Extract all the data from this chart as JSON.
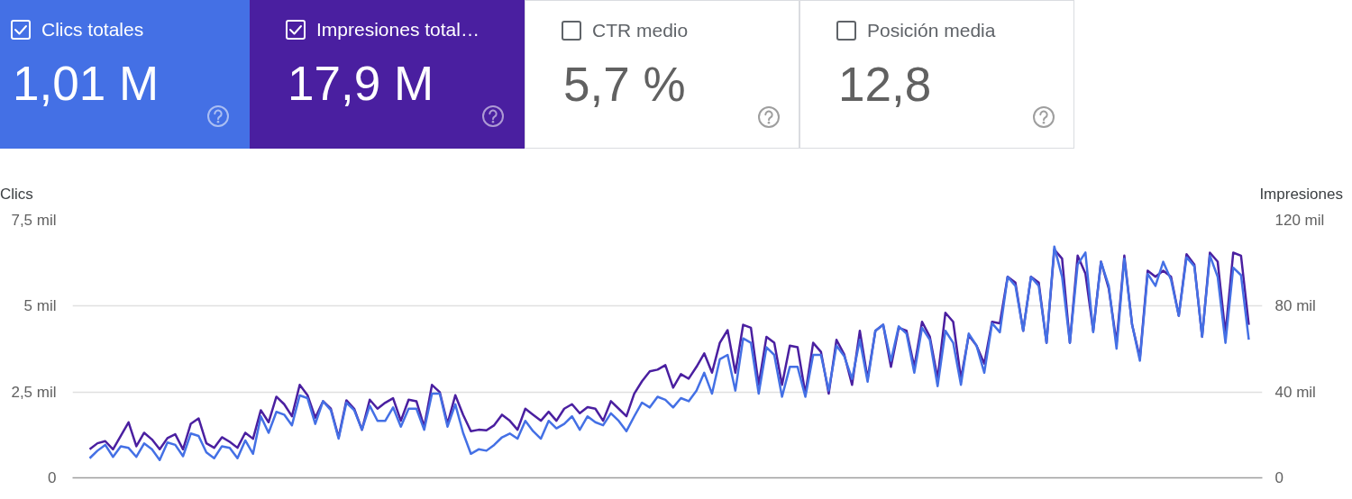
{
  "chart_data": {
    "type": "line",
    "annotations": [
      "Clics totales",
      "1,01 M",
      "Impresiones total…",
      "17,9 M",
      "CTR medio",
      "5,7 %",
      "Posición media",
      "12,8"
    ],
    "ylabel": "Clics",
    "y2label": "Impresiones",
    "categories": [
      null,
      null,
      null,
      null,
      null,
      null,
      null,
      null,
      null,
      null,
      null,
      null,
      null,
      null,
      null,
      null,
      null,
      null,
      null,
      null,
      null,
      null,
      null,
      null,
      null,
      null,
      null,
      null,
      null,
      null,
      null,
      null,
      null,
      null,
      null,
      null,
      null,
      null,
      null,
      null,
      null,
      null,
      null,
      null,
      null,
      null,
      null,
      null,
      null,
      null,
      null,
      null,
      null,
      null,
      null,
      null,
      null,
      null,
      null,
      null,
      null,
      null,
      null,
      null,
      null,
      null,
      null,
      null,
      null,
      null,
      null,
      null,
      null,
      null,
      null,
      null,
      null,
      null,
      null,
      null,
      null,
      null,
      null,
      null,
      null,
      null,
      null,
      null,
      null,
      null,
      null,
      null,
      null,
      null,
      null,
      null,
      null,
      null,
      null,
      null,
      null,
      null,
      null,
      null,
      null,
      null,
      null,
      null,
      null,
      null,
      null,
      null,
      null,
      null,
      null,
      null,
      null,
      null,
      null,
      null,
      null,
      null,
      null,
      null,
      null,
      null,
      null,
      null,
      null,
      null,
      null,
      null,
      null,
      null,
      null,
      null,
      null,
      null,
      null,
      null,
      null,
      null,
      null,
      null,
      null,
      null,
      null,
      null,
      null,
      null
    ],
    "series": [
      {
        "color": "#4470e5",
        "values": [
          0.57,
          0.79,
          0.96,
          0.61,
          0.92,
          0.87,
          0.61,
          1.0,
          0.83,
          0.52,
          1.03,
          0.96,
          0.63,
          1.29,
          1.22,
          0.74,
          0.57,
          0.92,
          0.87,
          0.57,
          1.09,
          0.7,
          1.79,
          1.31,
          1.92,
          1.84,
          1.53,
          2.4,
          2.32,
          1.57,
          2.23,
          1.97,
          1.14,
          2.19,
          1.97,
          1.4,
          2.1,
          1.66,
          1.66,
          2.05,
          1.49,
          2.01,
          2.01,
          1.4,
          2.45,
          2.45,
          1.49,
          2.14,
          1.31,
          0.7,
          0.83,
          0.79,
          0.96,
          1.18,
          1.29,
          1.14,
          1.66,
          1.36,
          1.14,
          1.66,
          1.44,
          1.57,
          1.79,
          1.4,
          1.79,
          1.62,
          1.53,
          1.88,
          1.66,
          1.36,
          1.79,
          2.19,
          2.05,
          2.36,
          2.27,
          2.05,
          2.32,
          2.23,
          2.54,
          3.06,
          2.45,
          3.45,
          3.58,
          2.54,
          4.06,
          3.93,
          2.45,
          3.8,
          3.58,
          2.36,
          3.23,
          3.23,
          2.36,
          3.58,
          3.58,
          2.54,
          3.85,
          3.54,
          2.88,
          4.02,
          2.8,
          4.28,
          4.46,
          3.41,
          4.41,
          4.2,
          3.06,
          4.37,
          4.02,
          2.67,
          4.28,
          3.93,
          2.71,
          4.2,
          3.85,
          3.06,
          4.5,
          4.24,
          5.85,
          5.59,
          4.28,
          5.85,
          5.59,
          3.93,
          6.73,
          5.85,
          3.93,
          6.21,
          6.56,
          4.24,
          6.29,
          5.59,
          3.76,
          6.38,
          4.46,
          3.41,
          5.94,
          5.59,
          6.29,
          5.77,
          4.72,
          6.42,
          6.16,
          4.11,
          6.47,
          5.85,
          3.93,
          6.12,
          5.9,
          4.02
        ]
      },
      {
        "color": "#4a1fa0",
        "axis": "y2",
        "values": [
          13.3,
          16.1,
          17.1,
          13.3,
          19.6,
          25.9,
          14.7,
          21.0,
          17.9,
          13.3,
          18.5,
          20.3,
          13.3,
          25.2,
          27.7,
          16.1,
          14.0,
          18.9,
          16.8,
          14.0,
          21.0,
          18.2,
          31.5,
          25.9,
          37.8,
          34.3,
          28.7,
          43.3,
          38.5,
          28.0,
          35.7,
          32.2,
          18.9,
          36.1,
          32.2,
          22.4,
          36.4,
          32.2,
          35.0,
          37.1,
          26.6,
          36.4,
          35.7,
          23.8,
          43.3,
          39.9,
          25.2,
          38.5,
          29.4,
          21.7,
          22.4,
          22.1,
          24.5,
          29.4,
          26.6,
          22.4,
          32.2,
          29.4,
          26.6,
          30.8,
          26.6,
          32.2,
          34.3,
          30.1,
          32.9,
          32.2,
          26.6,
          35.7,
          32.2,
          28.7,
          39.2,
          45.0,
          49.6,
          50.4,
          52.5,
          42.0,
          48.3,
          46.2,
          51.7,
          58.0,
          49.0,
          62.9,
          68.8,
          49.0,
          71.3,
          69.9,
          43.3,
          65.7,
          62.9,
          43.3,
          61.6,
          60.8,
          39.2,
          62.9,
          58.7,
          39.2,
          64.3,
          57.4,
          43.3,
          68.5,
          46.2,
          68.5,
          71.3,
          51.7,
          69.9,
          68.5,
          51.7,
          72.7,
          65.7,
          46.2,
          76.9,
          72.7,
          46.2,
          66.4,
          61.6,
          53.2,
          72.7,
          72.0,
          93.7,
          90.9,
          68.5,
          93.7,
          90.9,
          62.9,
          106.3,
          102.1,
          62.9,
          103.5,
          95.1,
          68.5,
          100.7,
          88.1,
          62.9,
          103.5,
          71.3,
          55.9,
          96.5,
          93.7,
          96.5,
          93.7,
          75.5,
          104.2,
          99.3,
          65.7,
          104.9,
          100.7,
          67.1,
          104.9,
          103.5,
          71.3
        ]
      }
    ],
    "ylim": [
      0,
      7.5
    ],
    "yticks": [
      0,
      {
        "value": 2.5,
        "label": "2,5 mil"
      },
      {
        "value": 5,
        "label": "5 mil"
      },
      {
        "value": 7.5,
        "label": "7,5 mil"
      }
    ],
    "y2lim": [
      0,
      120
    ],
    "y2ticks": [
      0,
      {
        "value": 40,
        "label": "40 mil"
      },
      {
        "value": 80,
        "label": "80 mil"
      },
      {
        "value": 120,
        "label": "120 mil"
      }
    ],
    "grid": "y"
  }
}
